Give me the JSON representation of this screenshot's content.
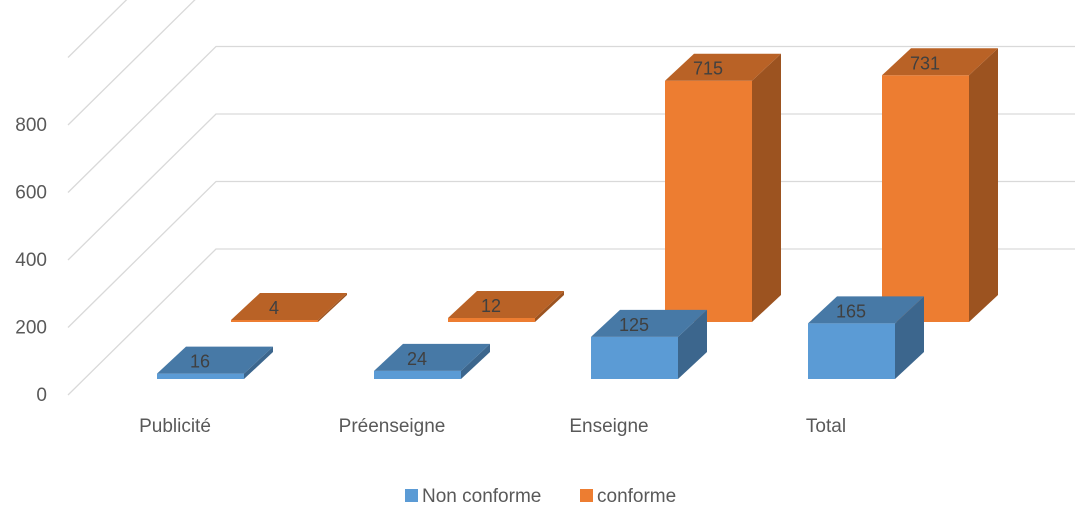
{
  "chart_data": {
    "type": "bar",
    "style": "3d-clustered-column",
    "categories": [
      "Publicité",
      "Préenseigne",
      "Enseigne",
      "Total"
    ],
    "series": [
      {
        "name": "Non conforme",
        "values": [
          16,
          24,
          125,
          165
        ],
        "color": "#5b9bd5"
      },
      {
        "name": "conforme",
        "values": [
          4,
          12,
          715,
          731
        ],
        "color": "#ed7d31"
      }
    ],
    "y_ticks": [
      0,
      200,
      400,
      600,
      800
    ],
    "ylim": [
      0,
      1000
    ],
    "grid": true,
    "legend": "bottom"
  }
}
